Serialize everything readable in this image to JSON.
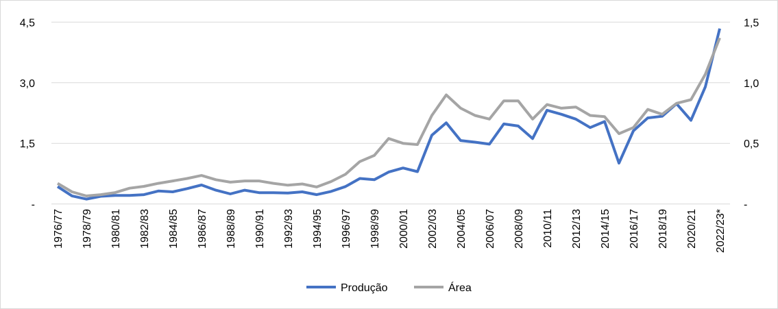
{
  "chart_data": {
    "type": "line",
    "title": "",
    "xlabel": "",
    "ylabel": "",
    "y_left": {
      "ylim": [
        0,
        4.5
      ],
      "ticks": [
        0,
        1.5,
        3.0,
        4.5
      ],
      "tick_labels": [
        "-",
        "1,5",
        "3,0",
        "4,5"
      ]
    },
    "y_right": {
      "ylim": [
        0,
        1.5
      ],
      "ticks": [
        0,
        0.5,
        1.0,
        1.5
      ],
      "tick_labels": [
        "-",
        "0,5",
        "1,0",
        "1,5"
      ]
    },
    "grid": true,
    "legend": "bottom",
    "categories": [
      "1976/77",
      "1977/78",
      "1978/79",
      "1979/80",
      "1980/81",
      "1981/82",
      "1982/83",
      "1983/84",
      "1984/85",
      "1985/86",
      "1986/87",
      "1987/88",
      "1988/89",
      "1989/90",
      "1990/91",
      "1991/92",
      "1992/93",
      "1993/94",
      "1994/95",
      "1995/96",
      "1996/97",
      "1997/98",
      "1998/99",
      "1999/00",
      "2000/01",
      "2001/02",
      "2002/03",
      "2003/04",
      "2004/05",
      "2005/06",
      "2006/07",
      "2007/08",
      "2008/09",
      "2009/10",
      "2010/11",
      "2011/12",
      "2012/13",
      "2013/14",
      "2014/15",
      "2015/16",
      "2016/17",
      "2017/18",
      "2018/19",
      "2019/20",
      "2020/21",
      "2021/22",
      "2022/23*"
    ],
    "x_tick_labels_shown": "every other category",
    "series": [
      {
        "name": "Produção",
        "axis": "left",
        "color": "#4472c4",
        "values": [
          0.43,
          0.2,
          0.12,
          0.19,
          0.21,
          0.21,
          0.23,
          0.32,
          0.3,
          0.38,
          0.47,
          0.34,
          0.25,
          0.34,
          0.28,
          0.28,
          0.27,
          0.3,
          0.23,
          0.31,
          0.43,
          0.63,
          0.6,
          0.79,
          0.89,
          0.8,
          1.7,
          2.01,
          1.57,
          1.53,
          1.48,
          1.98,
          1.93,
          1.62,
          2.32,
          2.22,
          2.1,
          1.89,
          2.04,
          1.01,
          1.81,
          2.13,
          2.17,
          2.48,
          2.07,
          2.9,
          4.34
        ]
      },
      {
        "name": "Área",
        "axis": "right",
        "color": "#a5a5a5",
        "values": [
          0.17,
          0.1,
          0.066,
          0.077,
          0.094,
          0.13,
          0.145,
          0.17,
          0.19,
          0.21,
          0.235,
          0.2,
          0.18,
          0.19,
          0.19,
          0.17,
          0.155,
          0.165,
          0.14,
          0.185,
          0.245,
          0.35,
          0.4,
          0.54,
          0.5,
          0.49,
          0.73,
          0.9,
          0.79,
          0.73,
          0.7,
          0.85,
          0.85,
          0.7,
          0.82,
          0.79,
          0.8,
          0.73,
          0.72,
          0.58,
          0.63,
          0.78,
          0.74,
          0.83,
          0.86,
          1.07,
          1.37
        ]
      }
    ]
  }
}
